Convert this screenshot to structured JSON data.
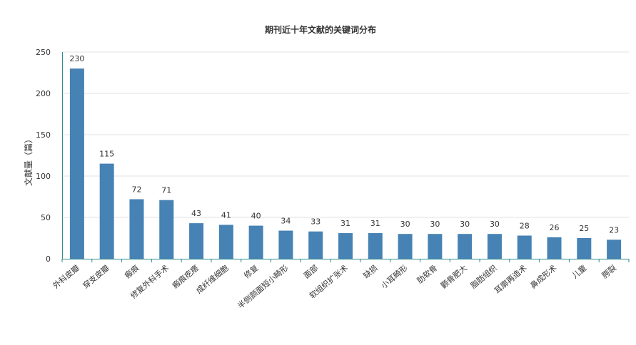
{
  "chart_data": {
    "type": "bar",
    "title": "期刊近十年文献的关键词分布",
    "ylabel": "文献量（篇）",
    "xlabel": "",
    "ylim": [
      0,
      250
    ],
    "yticks": [
      0,
      50,
      100,
      150,
      200,
      250
    ],
    "grid": true,
    "legend": "none",
    "bar_color": "#4682b4",
    "categories": [
      "外科皮瓣",
      "穿支皮瓣",
      "瘢痕",
      "修复外科手术",
      "瘢痕疙瘩",
      "成纤维细胞",
      "修复",
      "半侧颜面短小畸形",
      "面部",
      "软组织扩张术",
      "缺损",
      "小耳畸形",
      "肋软骨",
      "颧骨肥大",
      "脂肪组织",
      "耳廓再造术",
      "鼻成形术",
      "儿童",
      "腭裂"
    ],
    "values": [
      230,
      115,
      72,
      71,
      43,
      41,
      40,
      34,
      33,
      31,
      31,
      30,
      30,
      30,
      30,
      28,
      26,
      25,
      23
    ]
  }
}
